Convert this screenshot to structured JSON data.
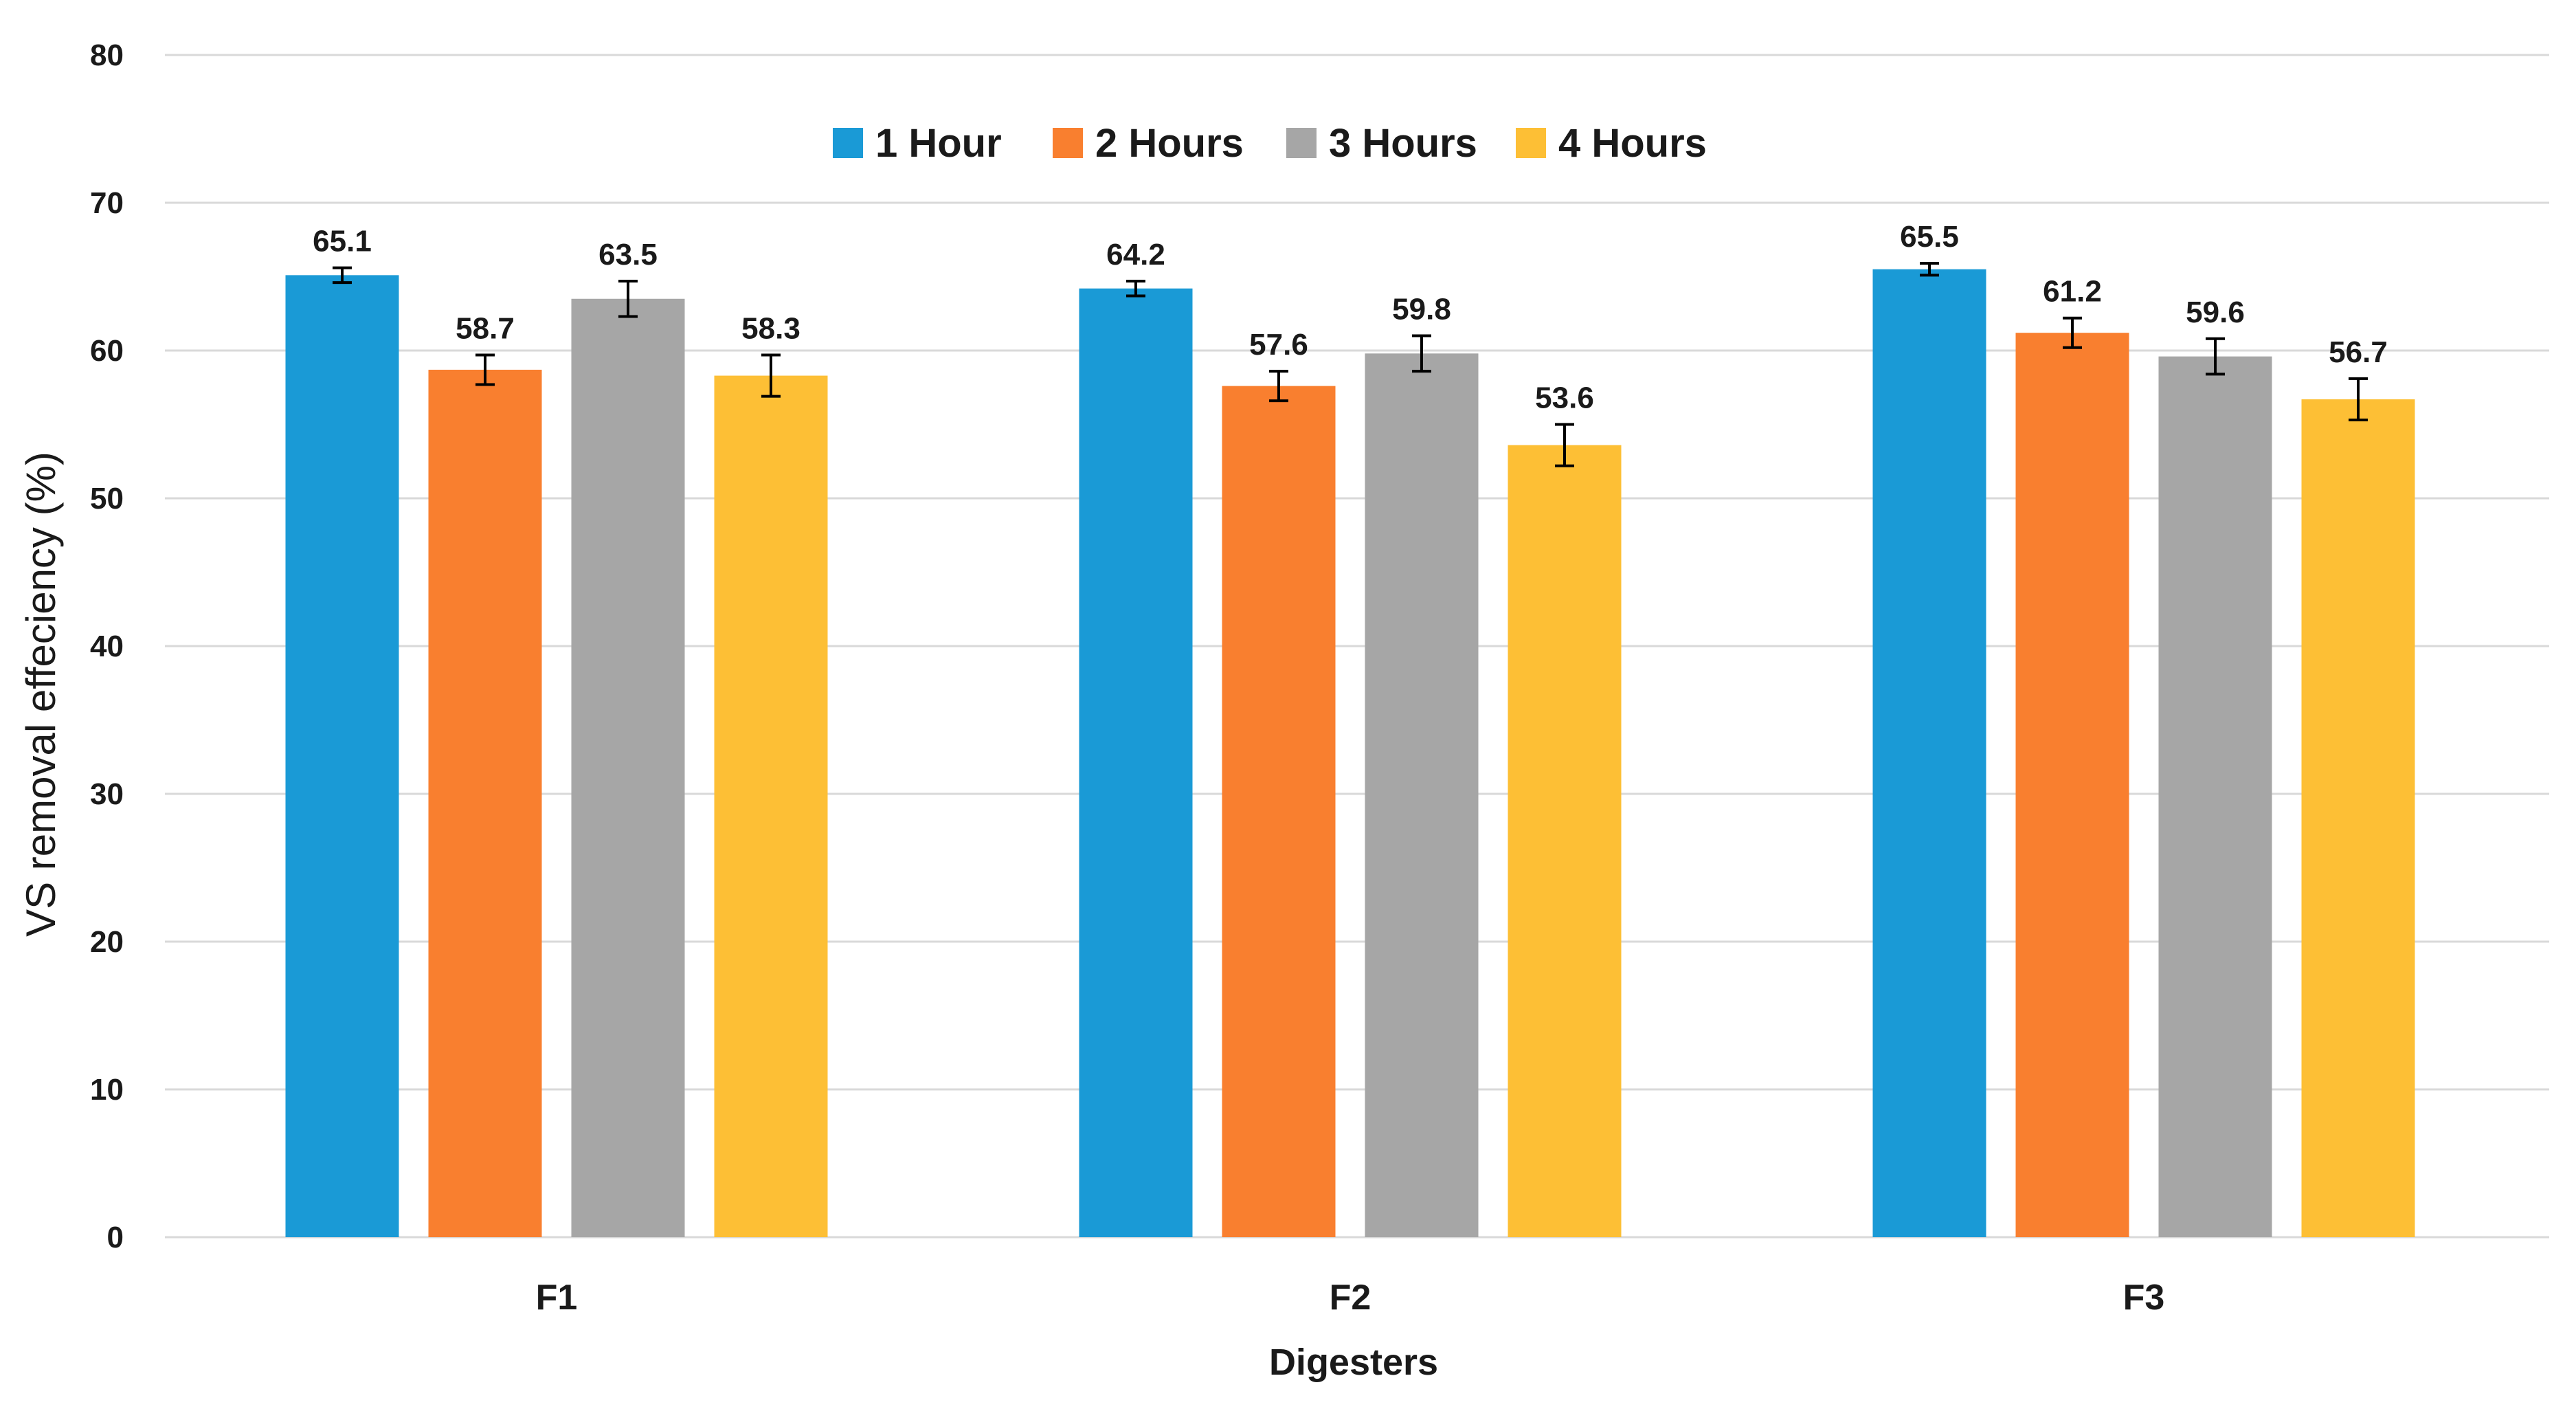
{
  "chart_data": {
    "type": "bar",
    "categories": [
      "F1",
      "F2",
      "F3"
    ],
    "series": [
      {
        "name": "1 Hour",
        "color": "#1a9ad6",
        "values": [
          65.1,
          64.2,
          65.5
        ],
        "errors": [
          0.5,
          0.5,
          0.4
        ]
      },
      {
        "name": "2 Hours",
        "color": "#f97f2f",
        "values": [
          58.7,
          57.6,
          61.2
        ],
        "errors": [
          1.0,
          1.0,
          1.0
        ]
      },
      {
        "name": "3 Hours",
        "color": "#a6a6a6",
        "values": [
          63.5,
          59.8,
          59.6
        ],
        "errors": [
          1.2,
          1.2,
          1.2
        ]
      },
      {
        "name": "4 Hours",
        "color": "#fdbf35",
        "values": [
          58.3,
          53.6,
          56.7
        ],
        "errors": [
          1.4,
          1.4,
          1.4
        ]
      }
    ],
    "data_labels": [
      [
        "65.1",
        "64.2",
        "65.5"
      ],
      [
        "58.7",
        "57.6",
        "61.2"
      ],
      [
        "63.5",
        "59.8",
        "59.6"
      ],
      [
        "58.3",
        "53.6",
        "56.7"
      ]
    ],
    "xlabel": "Digesters",
    "ylabel": "VS removal effeciency (%)",
    "ylim": [
      0,
      80
    ],
    "yticks": [
      "0",
      "10",
      "20",
      "30",
      "40",
      "50",
      "60",
      "70",
      "80"
    ],
    "grid": true,
    "legend_position": "top-center",
    "gridline_color": "#d9d9d9",
    "error_bar_color": "#000000"
  }
}
